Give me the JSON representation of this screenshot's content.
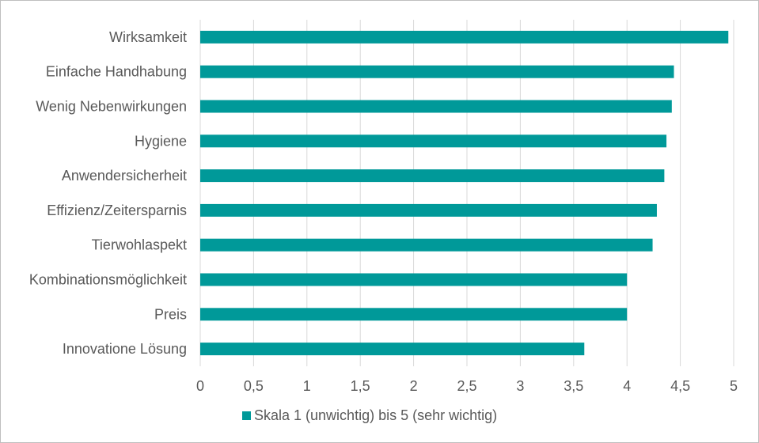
{
  "chart_data": {
    "type": "bar",
    "orientation": "horizontal",
    "categories": [
      "Wirksamkeit",
      "Einfache Handhabung",
      "Wenig Nebenwirkungen",
      "Hygiene",
      "Anwendersicherheit",
      "Effizienz/Zeitersparnis",
      "Tierwohlaspekt",
      "Kombinationsmöglichkeit",
      "Preis",
      "Innovatione Lösung"
    ],
    "series": [
      {
        "name": "Skala 1 (unwichtig) bis 5 (sehr wichtig)",
        "values": [
          4.95,
          4.44,
          4.42,
          4.37,
          4.35,
          4.28,
          4.24,
          4.0,
          4.0,
          3.6
        ],
        "color": "#009999"
      }
    ],
    "xlim": [
      0,
      5
    ],
    "xticks": [
      0,
      0.5,
      1,
      1.5,
      2,
      2.5,
      3,
      3.5,
      4,
      4.5,
      5
    ],
    "xtick_labels": [
      "0",
      "0,5",
      "1",
      "1,5",
      "2",
      "2,5",
      "3",
      "3,5",
      "4",
      "4,5",
      "5"
    ],
    "grid": "vertical",
    "legend_position": "bottom",
    "gridline_color": "#d9d9d9"
  }
}
